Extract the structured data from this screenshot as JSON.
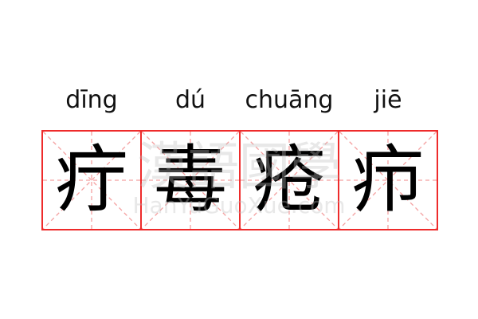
{
  "entries": [
    {
      "pinyin": "dīng",
      "char": "疔"
    },
    {
      "pinyin": "dú",
      "char": "毒"
    },
    {
      "pinyin": "chuāng",
      "char": "疮"
    },
    {
      "pinyin": "jiē",
      "char": "疖"
    }
  ],
  "watermark": {
    "chinese": "漢語國學",
    "latin": "HanYuGuoXue.com"
  },
  "colors": {
    "grid_border": "#ee2b2b",
    "guide_lines": "#f4a0a0",
    "text": "#000000"
  }
}
